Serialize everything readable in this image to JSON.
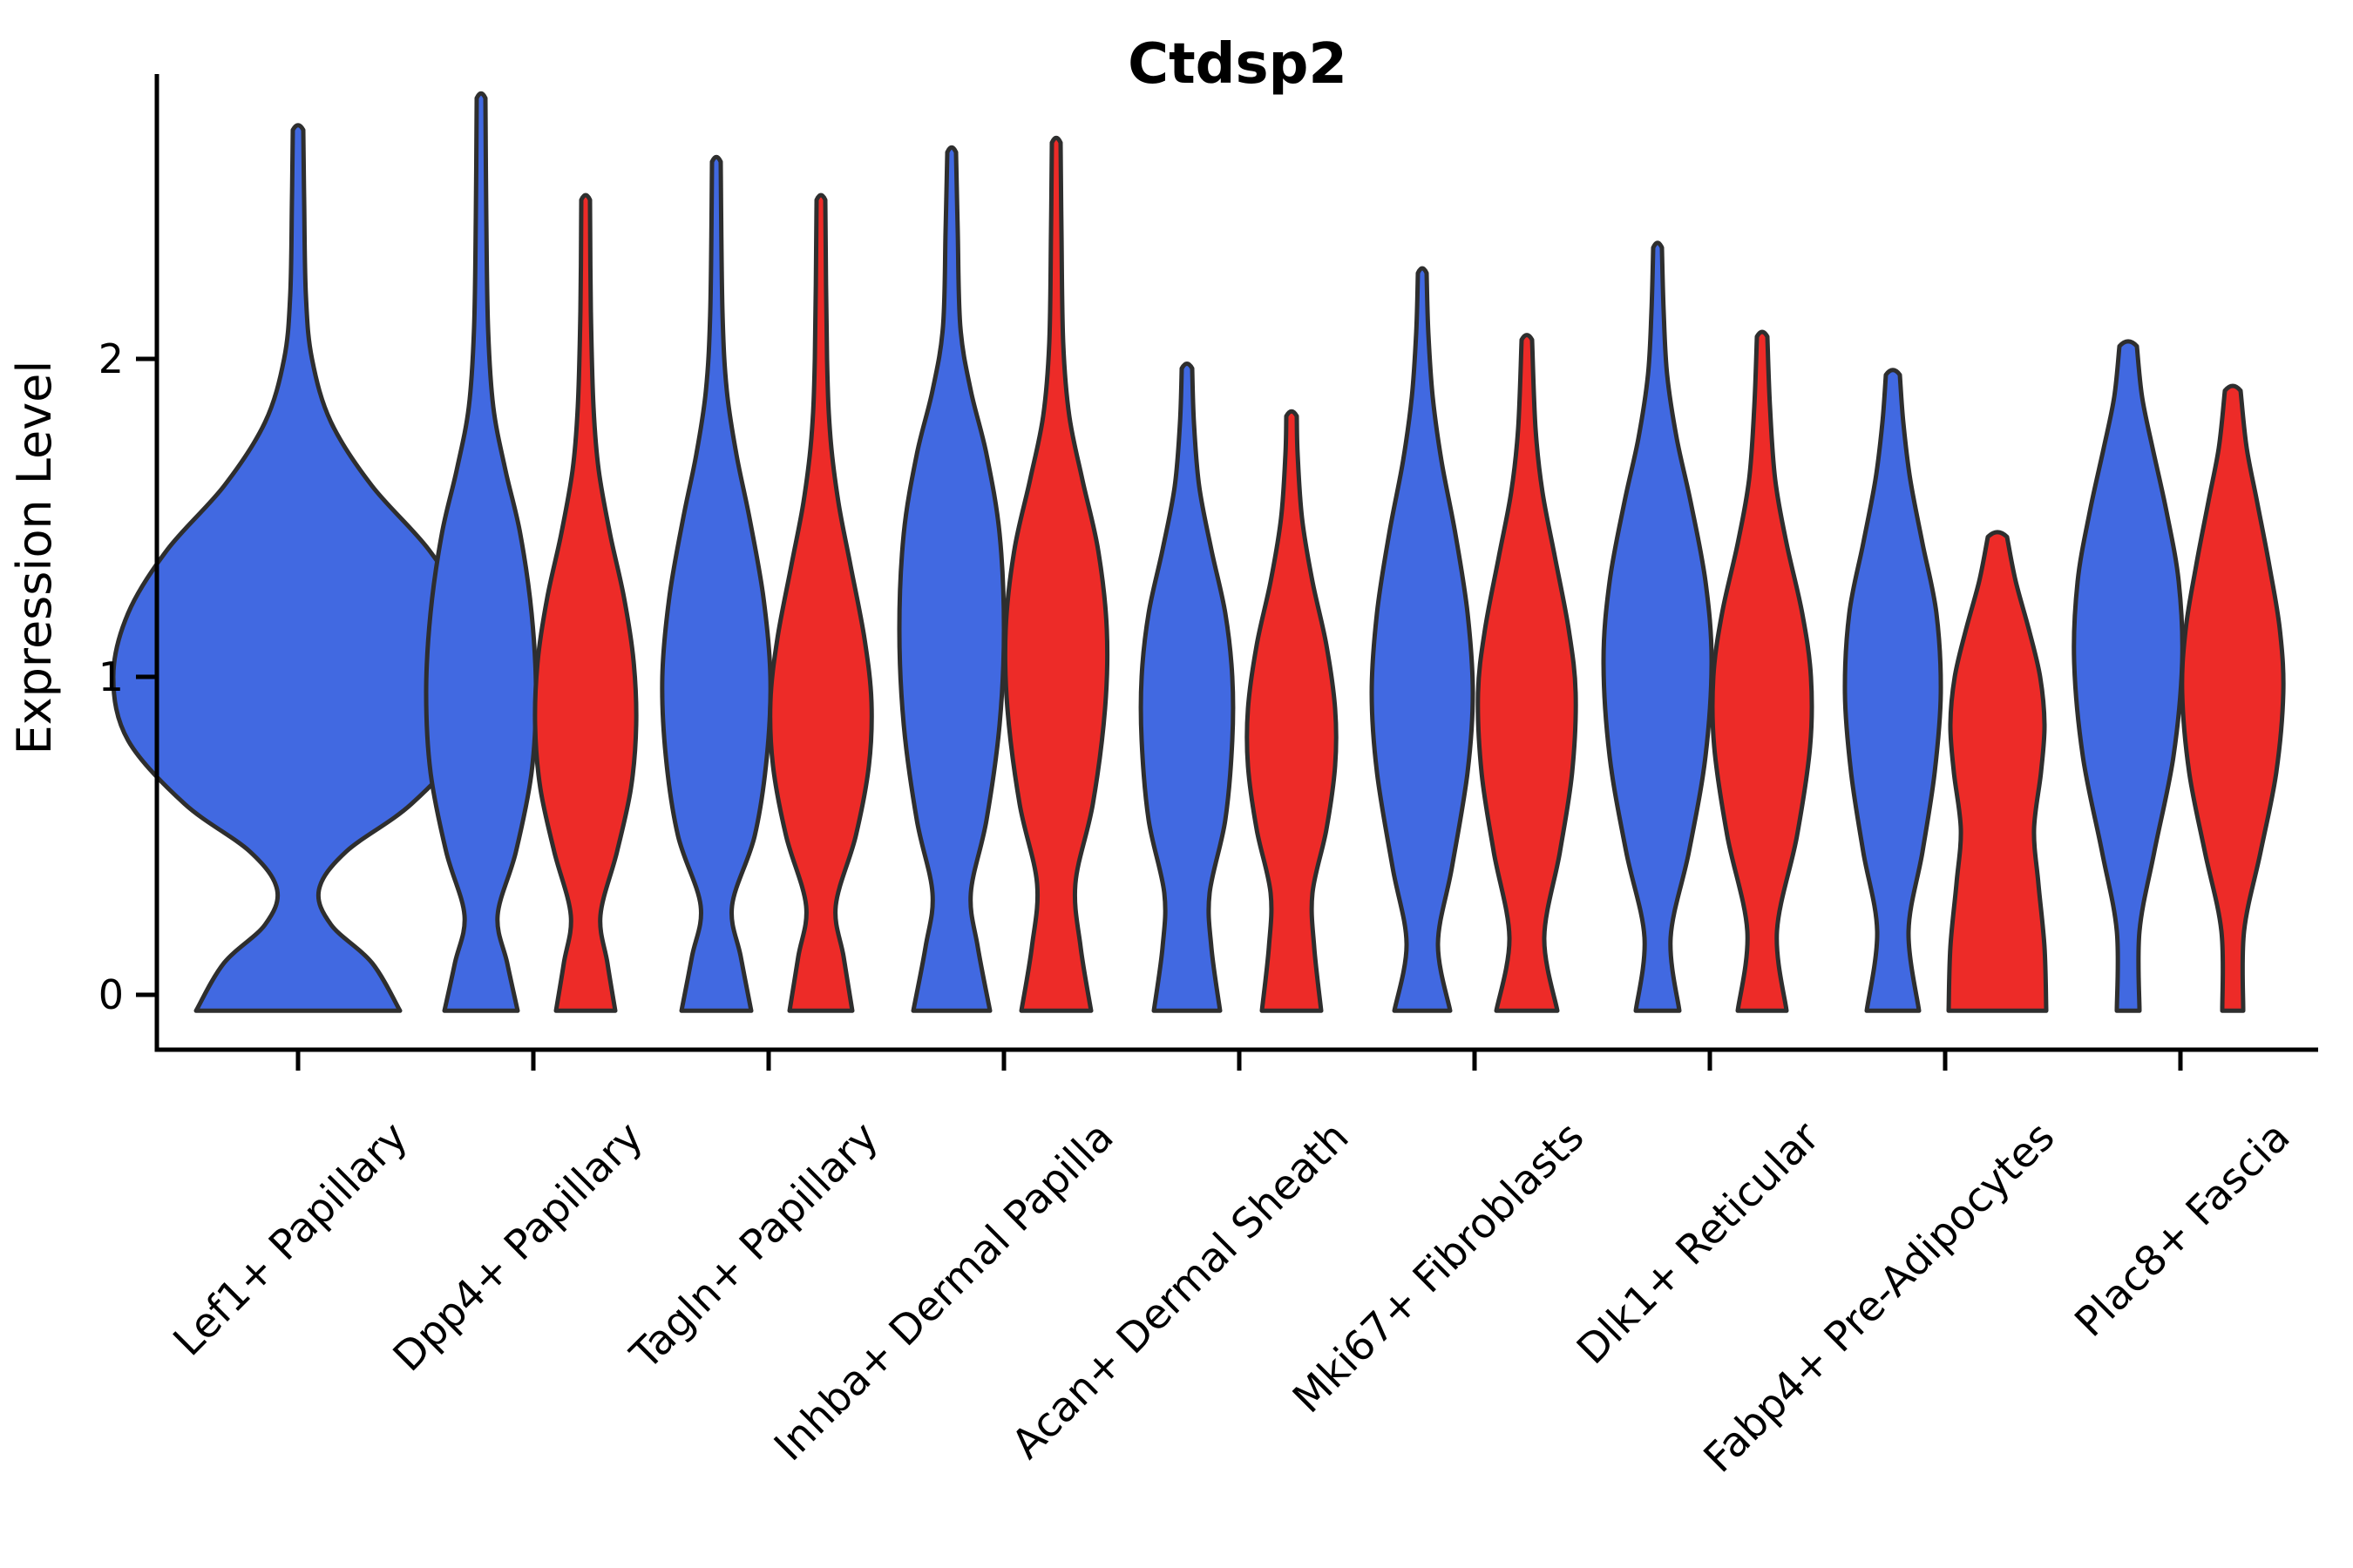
{
  "title": "Ctdsp2",
  "axes": {
    "ylabel": "Expression Level",
    "ytick_labels": [
      "0",
      "1",
      "2"
    ],
    "ytick_values": [
      0,
      1,
      2
    ],
    "ylim": [
      0,
      2.9
    ],
    "grid": false,
    "legend": "none"
  },
  "colors": {
    "blue": "#4169E1",
    "red": "#ED2B28",
    "outline": "#2E2E2E",
    "axis": "#000000"
  },
  "chart_data": {
    "type": "violin",
    "title": "Ctdsp2",
    "ylabel": "Expression Level",
    "categories": [
      "Lef1+ Papillary",
      "Dpp4+ Papillary",
      "Tagln+ Papillary",
      "Inhba+ Dermal Papilla",
      "Acan+ Dermal Sheath",
      "Mki67+ Fibroblasts",
      "Dlk1+ Reticular",
      "Fabp4+ Pre-Adipocytes",
      "Plac8+ Fascia"
    ],
    "groups": [
      "blue",
      "red"
    ],
    "series": [
      {
        "category": 0,
        "group": "blue",
        "max_expression": 2.72,
        "peak_expression": 1.0,
        "profile": [
          [
            -0.05,
            117
          ],
          [
            0.1,
            85
          ],
          [
            0.22,
            38
          ],
          [
            0.33,
            24
          ],
          [
            0.45,
            55
          ],
          [
            0.6,
            130
          ],
          [
            0.8,
            195
          ],
          [
            1.0,
            212
          ],
          [
            1.2,
            195
          ],
          [
            1.4,
            150
          ],
          [
            1.6,
            85
          ],
          [
            1.8,
            38
          ],
          [
            2.0,
            16
          ],
          [
            2.2,
            9
          ],
          [
            2.5,
            7
          ],
          [
            2.72,
            6
          ]
        ]
      },
      {
        "category": 1,
        "group": "blue",
        "max_expression": 2.82,
        "peak_expression": 0.95,
        "profile": [
          [
            -0.05,
            42
          ],
          [
            0.1,
            30
          ],
          [
            0.25,
            19
          ],
          [
            0.45,
            40
          ],
          [
            0.7,
            58
          ],
          [
            0.95,
            63
          ],
          [
            1.2,
            58
          ],
          [
            1.45,
            45
          ],
          [
            1.65,
            28
          ],
          [
            1.85,
            14
          ],
          [
            2.1,
            8
          ],
          [
            2.45,
            6
          ],
          [
            2.82,
            5
          ]
        ]
      },
      {
        "category": 1,
        "group": "red",
        "max_expression": 2.5,
        "peak_expression": 0.85,
        "profile": [
          [
            -0.05,
            34
          ],
          [
            0.1,
            25
          ],
          [
            0.25,
            17
          ],
          [
            0.45,
            36
          ],
          [
            0.65,
            52
          ],
          [
            0.85,
            58
          ],
          [
            1.05,
            55
          ],
          [
            1.25,
            44
          ],
          [
            1.45,
            28
          ],
          [
            1.65,
            15
          ],
          [
            1.85,
            9
          ],
          [
            2.15,
            6
          ],
          [
            2.5,
            5
          ]
        ]
      },
      {
        "category": 2,
        "group": "blue",
        "max_expression": 2.62,
        "peak_expression": 1.0,
        "profile": [
          [
            -0.05,
            40
          ],
          [
            0.12,
            28
          ],
          [
            0.28,
            18
          ],
          [
            0.5,
            44
          ],
          [
            0.75,
            58
          ],
          [
            1.0,
            62
          ],
          [
            1.25,
            54
          ],
          [
            1.5,
            38
          ],
          [
            1.7,
            23
          ],
          [
            1.9,
            12
          ],
          [
            2.15,
            7
          ],
          [
            2.62,
            5
          ]
        ]
      },
      {
        "category": 2,
        "group": "red",
        "max_expression": 2.5,
        "peak_expression": 0.92,
        "profile": [
          [
            -0.05,
            36
          ],
          [
            0.12,
            26
          ],
          [
            0.28,
            17
          ],
          [
            0.5,
            40
          ],
          [
            0.72,
            55
          ],
          [
            0.92,
            58
          ],
          [
            1.12,
            50
          ],
          [
            1.35,
            34
          ],
          [
            1.55,
            20
          ],
          [
            1.75,
            11
          ],
          [
            2.0,
            7
          ],
          [
            2.5,
            5
          ]
        ]
      },
      {
        "category": 3,
        "group": "blue",
        "max_expression": 2.65,
        "peak_expression": 1.15,
        "profile": [
          [
            -0.05,
            44
          ],
          [
            0.15,
            30
          ],
          [
            0.32,
            22
          ],
          [
            0.55,
            40
          ],
          [
            0.85,
            55
          ],
          [
            1.15,
            60
          ],
          [
            1.45,
            55
          ],
          [
            1.7,
            40
          ],
          [
            1.9,
            22
          ],
          [
            2.1,
            10
          ],
          [
            2.4,
            7
          ],
          [
            2.65,
            5
          ]
        ]
      },
      {
        "category": 3,
        "group": "red",
        "max_expression": 2.68,
        "peak_expression": 1.15,
        "profile": [
          [
            -0.05,
            40
          ],
          [
            0.15,
            28
          ],
          [
            0.35,
            22
          ],
          [
            0.6,
            42
          ],
          [
            0.9,
            56
          ],
          [
            1.15,
            58
          ],
          [
            1.4,
            48
          ],
          [
            1.62,
            30
          ],
          [
            1.82,
            15
          ],
          [
            2.05,
            8
          ],
          [
            2.4,
            6
          ],
          [
            2.68,
            5
          ]
        ]
      },
      {
        "category": 4,
        "group": "blue",
        "max_expression": 1.97,
        "peak_expression": 0.9,
        "profile": [
          [
            -0.05,
            38
          ],
          [
            0.15,
            28
          ],
          [
            0.32,
            26
          ],
          [
            0.55,
            44
          ],
          [
            0.8,
            52
          ],
          [
            1.0,
            52
          ],
          [
            1.2,
            44
          ],
          [
            1.4,
            28
          ],
          [
            1.6,
            14
          ],
          [
            1.8,
            8
          ],
          [
            1.97,
            6
          ]
        ]
      },
      {
        "category": 4,
        "group": "red",
        "max_expression": 1.82,
        "peak_expression": 0.8,
        "profile": [
          [
            -0.05,
            34
          ],
          [
            0.15,
            26
          ],
          [
            0.32,
            24
          ],
          [
            0.52,
            40
          ],
          [
            0.72,
            50
          ],
          [
            0.9,
            50
          ],
          [
            1.1,
            40
          ],
          [
            1.3,
            24
          ],
          [
            1.5,
            12
          ],
          [
            1.7,
            7
          ],
          [
            1.82,
            6
          ]
        ]
      },
      {
        "category": 5,
        "group": "blue",
        "max_expression": 2.27,
        "peak_expression": 0.95,
        "profile": [
          [
            -0.05,
            32
          ],
          [
            0.16,
            18
          ],
          [
            0.4,
            34
          ],
          [
            0.7,
            52
          ],
          [
            0.95,
            58
          ],
          [
            1.2,
            52
          ],
          [
            1.45,
            38
          ],
          [
            1.68,
            22
          ],
          [
            1.88,
            12
          ],
          [
            2.08,
            7
          ],
          [
            2.27,
            5
          ]
        ]
      },
      {
        "category": 5,
        "group": "red",
        "max_expression": 2.06,
        "peak_expression": 0.95,
        "profile": [
          [
            -0.05,
            35
          ],
          [
            0.18,
            20
          ],
          [
            0.45,
            38
          ],
          [
            0.7,
            52
          ],
          [
            0.95,
            56
          ],
          [
            1.15,
            48
          ],
          [
            1.38,
            32
          ],
          [
            1.58,
            18
          ],
          [
            1.78,
            10
          ],
          [
            2.06,
            6
          ]
        ]
      },
      {
        "category": 6,
        "group": "blue",
        "max_expression": 2.35,
        "peak_expression": 1.05,
        "profile": [
          [
            -0.05,
            25
          ],
          [
            0.18,
            15
          ],
          [
            0.45,
            36
          ],
          [
            0.75,
            55
          ],
          [
            1.05,
            62
          ],
          [
            1.3,
            55
          ],
          [
            1.55,
            38
          ],
          [
            1.75,
            22
          ],
          [
            1.95,
            11
          ],
          [
            2.15,
            7
          ],
          [
            2.35,
            5
          ]
        ]
      },
      {
        "category": 6,
        "group": "red",
        "max_expression": 2.07,
        "peak_expression": 1.0,
        "profile": [
          [
            -0.05,
            28
          ],
          [
            0.2,
            17
          ],
          [
            0.5,
            40
          ],
          [
            0.78,
            55
          ],
          [
            1.0,
            56
          ],
          [
            1.2,
            46
          ],
          [
            1.42,
            28
          ],
          [
            1.62,
            15
          ],
          [
            1.85,
            9
          ],
          [
            2.07,
            6
          ]
        ]
      },
      {
        "category": 7,
        "group": "blue",
        "max_expression": 1.95,
        "peak_expression": 0.95,
        "profile": [
          [
            -0.05,
            30
          ],
          [
            0.2,
            18
          ],
          [
            0.45,
            34
          ],
          [
            0.7,
            48
          ],
          [
            0.95,
            55
          ],
          [
            1.2,
            50
          ],
          [
            1.42,
            34
          ],
          [
            1.62,
            20
          ],
          [
            1.8,
            12
          ],
          [
            1.95,
            8
          ]
        ]
      },
      {
        "category": 7,
        "group": "red",
        "max_expression": 1.44,
        "peak_expression": 0.85,
        "profile": [
          [
            -0.05,
            56
          ],
          [
            0.15,
            54
          ],
          [
            0.35,
            47
          ],
          [
            0.52,
            42
          ],
          [
            0.7,
            50
          ],
          [
            0.85,
            54
          ],
          [
            1.0,
            49
          ],
          [
            1.15,
            36
          ],
          [
            1.3,
            21
          ],
          [
            1.44,
            11
          ]
        ]
      },
      {
        "category": 8,
        "group": "blue",
        "max_expression": 2.04,
        "peak_expression": 1.05,
        "profile": [
          [
            -0.05,
            13
          ],
          [
            0.2,
            13
          ],
          [
            0.45,
            30
          ],
          [
            0.75,
            52
          ],
          [
            1.05,
            62
          ],
          [
            1.3,
            58
          ],
          [
            1.52,
            44
          ],
          [
            1.72,
            28
          ],
          [
            1.88,
            16
          ],
          [
            2.04,
            10
          ]
        ]
      },
      {
        "category": 8,
        "group": "red",
        "max_expression": 1.9,
        "peak_expression": 0.95,
        "profile": [
          [
            -0.05,
            12
          ],
          [
            0.2,
            13
          ],
          [
            0.45,
            32
          ],
          [
            0.7,
            50
          ],
          [
            0.95,
            58
          ],
          [
            1.15,
            54
          ],
          [
            1.35,
            42
          ],
          [
            1.55,
            28
          ],
          [
            1.72,
            16
          ],
          [
            1.9,
            9
          ]
        ]
      }
    ]
  }
}
